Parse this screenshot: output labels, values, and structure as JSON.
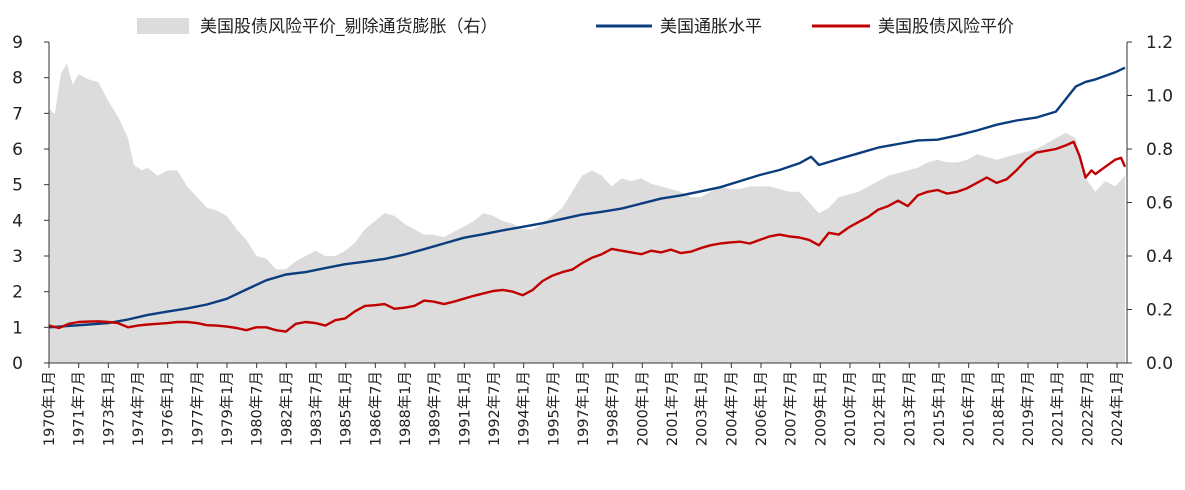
{
  "chart_data": {
    "type": "line",
    "title": "",
    "legend_position": "top",
    "grid": false,
    "x_tick_labels": [
      "1970年1月",
      "1971年7月",
      "1973年1月",
      "1974年7月",
      "1976年1月",
      "1977年7月",
      "1979年1月",
      "1980年7月",
      "1982年1月",
      "1983年7月",
      "1985年1月",
      "1986年7月",
      "1988年1月",
      "1989年7月",
      "1991年1月",
      "1992年7月",
      "1994年1月",
      "1995年7月",
      "1997年1月",
      "1998年7月",
      "2000年1月",
      "2001年7月",
      "2003年1月",
      "2004年7月",
      "2006年1月",
      "2007年7月",
      "2009年1月",
      "2010年7月",
      "2012年1月",
      "2013年7月",
      "2015年1月",
      "2016年7月",
      "2018年1月",
      "2019年7月",
      "2021年1月",
      "2022年7月",
      "2024年1月"
    ],
    "y_left": {
      "ylim": [
        0,
        9
      ],
      "ticks": [
        "0",
        "1",
        "2",
        "3",
        "4",
        "5",
        "6",
        "7",
        "8",
        "9"
      ]
    },
    "y_right": {
      "ylim": [
        0.0,
        1.2
      ],
      "ticks": [
        "0.0",
        "0.2",
        "0.4",
        "0.6",
        "0.8",
        "1.0",
        "1.2"
      ]
    },
    "series": [
      {
        "name": "美国股债风险平价_剔除通货膨胀（右）",
        "type": "area",
        "axis": "right",
        "color": "#dcdcdc",
        "x": [
          1970.0,
          1970.3,
          1970.6,
          1970.9,
          1971.2,
          1971.5,
          1972.0,
          1972.5,
          1973.0,
          1973.5,
          1974.0,
          1974.3,
          1974.7,
          1975.0,
          1975.5,
          1976.0,
          1976.5,
          1977.0,
          1977.5,
          1978.0,
          1978.5,
          1979.0,
          1979.5,
          1980.0,
          1980.5,
          1981.0,
          1981.5,
          1982.0,
          1982.5,
          1983.0,
          1983.5,
          1984.0,
          1984.5,
          1985.0,
          1985.5,
          1986.0,
          1986.5,
          1987.0,
          1987.5,
          1988.0,
          1988.5,
          1989.0,
          1989.5,
          1990.0,
          1990.5,
          1991.0,
          1991.5,
          1992.0,
          1992.5,
          1993.0,
          1993.5,
          1994.0,
          1994.5,
          1995.0,
          1995.5,
          1996.0,
          1996.5,
          1997.0,
          1997.5,
          1998.0,
          1998.5,
          1999.0,
          1999.5,
          2000.0,
          2000.5,
          2001.0,
          2001.5,
          2002.0,
          2002.5,
          2003.0,
          2003.5,
          2004.0,
          2004.5,
          2005.0,
          2005.5,
          2006.0,
          2006.5,
          2007.0,
          2007.5,
          2008.0,
          2008.5,
          2009.0,
          2009.5,
          2010.0,
          2010.5,
          2011.0,
          2011.5,
          2012.0,
          2012.5,
          2013.0,
          2013.5,
          2014.0,
          2014.5,
          2015.0,
          2015.5,
          2016.0,
          2016.5,
          2017.0,
          2017.5,
          2018.0,
          2018.5,
          2019.0,
          2019.5,
          2020.0,
          2020.5,
          2021.0,
          2021.5,
          2022.0,
          2022.3,
          2022.6,
          2023.0,
          2023.5,
          2024.0,
          2024.5
        ],
        "values": [
          0.95,
          0.93,
          1.08,
          1.12,
          1.04,
          1.08,
          1.06,
          1.05,
          0.98,
          0.92,
          0.84,
          0.74,
          0.72,
          0.73,
          0.7,
          0.72,
          0.72,
          0.66,
          0.62,
          0.58,
          0.57,
          0.55,
          0.5,
          0.46,
          0.4,
          0.39,
          0.35,
          0.35,
          0.38,
          0.4,
          0.42,
          0.4,
          0.4,
          0.42,
          0.45,
          0.5,
          0.53,
          0.56,
          0.55,
          0.52,
          0.5,
          0.48,
          0.48,
          0.47,
          0.49,
          0.51,
          0.53,
          0.56,
          0.55,
          0.53,
          0.52,
          0.5,
          0.5,
          0.52,
          0.55,
          0.58,
          0.64,
          0.7,
          0.72,
          0.7,
          0.66,
          0.69,
          0.68,
          0.69,
          0.67,
          0.66,
          0.65,
          0.64,
          0.62,
          0.62,
          0.64,
          0.66,
          0.65,
          0.65,
          0.66,
          0.66,
          0.66,
          0.65,
          0.64,
          0.64,
          0.6,
          0.56,
          0.58,
          0.62,
          0.63,
          0.64,
          0.66,
          0.68,
          0.7,
          0.71,
          0.72,
          0.73,
          0.75,
          0.76,
          0.75,
          0.75,
          0.76,
          0.78,
          0.77,
          0.76,
          0.77,
          0.78,
          0.79,
          0.8,
          0.82,
          0.84,
          0.86,
          0.84,
          0.76,
          0.68,
          0.64,
          0.68,
          0.66,
          0.7
        ]
      },
      {
        "name": "美国通胀水平",
        "type": "line",
        "axis": "left",
        "color": "#0b3d7e",
        "x": [
          1970.0,
          1971.0,
          1972.0,
          1973.0,
          1974.0,
          1975.0,
          1976.0,
          1977.0,
          1978.0,
          1979.0,
          1980.0,
          1981.0,
          1982.0,
          1983.0,
          1984.0,
          1985.0,
          1986.0,
          1987.0,
          1988.0,
          1989.0,
          1990.0,
          1991.0,
          1992.0,
          1993.0,
          1994.0,
          1995.0,
          1996.0,
          1997.0,
          1998.0,
          1999.0,
          2000.0,
          2001.0,
          2002.0,
          2003.0,
          2004.0,
          2005.0,
          2006.0,
          2007.0,
          2008.0,
          2008.6,
          2009.0,
          2010.0,
          2011.0,
          2012.0,
          2013.0,
          2014.0,
          2015.0,
          2016.0,
          2017.0,
          2018.0,
          2019.0,
          2020.0,
          2021.0,
          2021.5,
          2022.0,
          2022.5,
          2023.0,
          2023.5,
          2024.0,
          2024.5
        ],
        "values": [
          1.0,
          1.04,
          1.08,
          1.12,
          1.22,
          1.35,
          1.44,
          1.53,
          1.64,
          1.8,
          2.06,
          2.32,
          2.48,
          2.55,
          2.66,
          2.77,
          2.84,
          2.92,
          3.04,
          3.19,
          3.35,
          3.51,
          3.61,
          3.72,
          3.82,
          3.92,
          4.04,
          4.16,
          4.24,
          4.33,
          4.47,
          4.61,
          4.7,
          4.81,
          4.93,
          5.1,
          5.27,
          5.41,
          5.6,
          5.78,
          5.55,
          5.72,
          5.88,
          6.04,
          6.14,
          6.24,
          6.26,
          6.38,
          6.52,
          6.68,
          6.8,
          6.88,
          7.05,
          7.4,
          7.75,
          7.88,
          7.95,
          8.05,
          8.15,
          8.28
        ]
      },
      {
        "name": "美国股债风险平价",
        "type": "line",
        "axis": "left",
        "color": "#c00000",
        "x": [
          1970.0,
          1970.5,
          1971.0,
          1971.5,
          1972.0,
          1972.5,
          1973.0,
          1973.5,
          1974.0,
          1974.5,
          1975.0,
          1975.5,
          1976.0,
          1976.5,
          1977.0,
          1977.5,
          1978.0,
          1978.5,
          1979.0,
          1979.5,
          1980.0,
          1980.5,
          1981.0,
          1981.5,
          1982.0,
          1982.5,
          1983.0,
          1983.5,
          1984.0,
          1984.5,
          1985.0,
          1985.5,
          1986.0,
          1986.5,
          1987.0,
          1987.5,
          1988.0,
          1988.5,
          1989.0,
          1989.5,
          1990.0,
          1990.5,
          1991.0,
          1991.5,
          1992.0,
          1992.5,
          1993.0,
          1993.5,
          1994.0,
          1994.5,
          1995.0,
          1995.5,
          1996.0,
          1996.5,
          1997.0,
          1997.5,
          1998.0,
          1998.5,
          1999.0,
          1999.5,
          2000.0,
          2000.5,
          2001.0,
          2001.5,
          2002.0,
          2002.5,
          2003.0,
          2003.5,
          2004.0,
          2004.5,
          2005.0,
          2005.5,
          2006.0,
          2006.5,
          2007.0,
          2007.5,
          2008.0,
          2008.5,
          2009.0,
          2009.5,
          2010.0,
          2010.5,
          2011.0,
          2011.5,
          2012.0,
          2012.5,
          2013.0,
          2013.5,
          2014.0,
          2014.5,
          2015.0,
          2015.5,
          2016.0,
          2016.5,
          2017.0,
          2017.5,
          2018.0,
          2018.5,
          2019.0,
          2019.5,
          2020.0,
          2020.5,
          2021.0,
          2021.5,
          2021.9,
          2022.2,
          2022.5,
          2022.8,
          2023.0,
          2023.5,
          2024.0,
          2024.3,
          2024.5
        ],
        "values": [
          1.05,
          0.98,
          1.1,
          1.15,
          1.16,
          1.17,
          1.15,
          1.12,
          1.0,
          1.05,
          1.08,
          1.1,
          1.12,
          1.15,
          1.15,
          1.12,
          1.06,
          1.05,
          1.02,
          0.98,
          0.92,
          1.0,
          1.0,
          0.92,
          0.88,
          1.1,
          1.15,
          1.12,
          1.05,
          1.2,
          1.25,
          1.45,
          1.6,
          1.62,
          1.65,
          1.52,
          1.55,
          1.6,
          1.75,
          1.72,
          1.65,
          1.72,
          1.8,
          1.88,
          1.95,
          2.02,
          2.05,
          2.0,
          1.9,
          2.05,
          2.3,
          2.45,
          2.55,
          2.62,
          2.8,
          2.95,
          3.05,
          3.2,
          3.15,
          3.1,
          3.05,
          3.15,
          3.1,
          3.18,
          3.08,
          3.12,
          3.22,
          3.3,
          3.35,
          3.38,
          3.4,
          3.35,
          3.45,
          3.55,
          3.6,
          3.55,
          3.52,
          3.45,
          3.3,
          3.65,
          3.6,
          3.8,
          3.95,
          4.1,
          4.3,
          4.4,
          4.55,
          4.4,
          4.7,
          4.8,
          4.85,
          4.75,
          4.8,
          4.9,
          5.05,
          5.2,
          5.05,
          5.15,
          5.4,
          5.7,
          5.9,
          5.95,
          6.0,
          6.1,
          6.2,
          5.8,
          5.2,
          5.4,
          5.3,
          5.5,
          5.7,
          5.75,
          5.5
        ]
      }
    ]
  }
}
